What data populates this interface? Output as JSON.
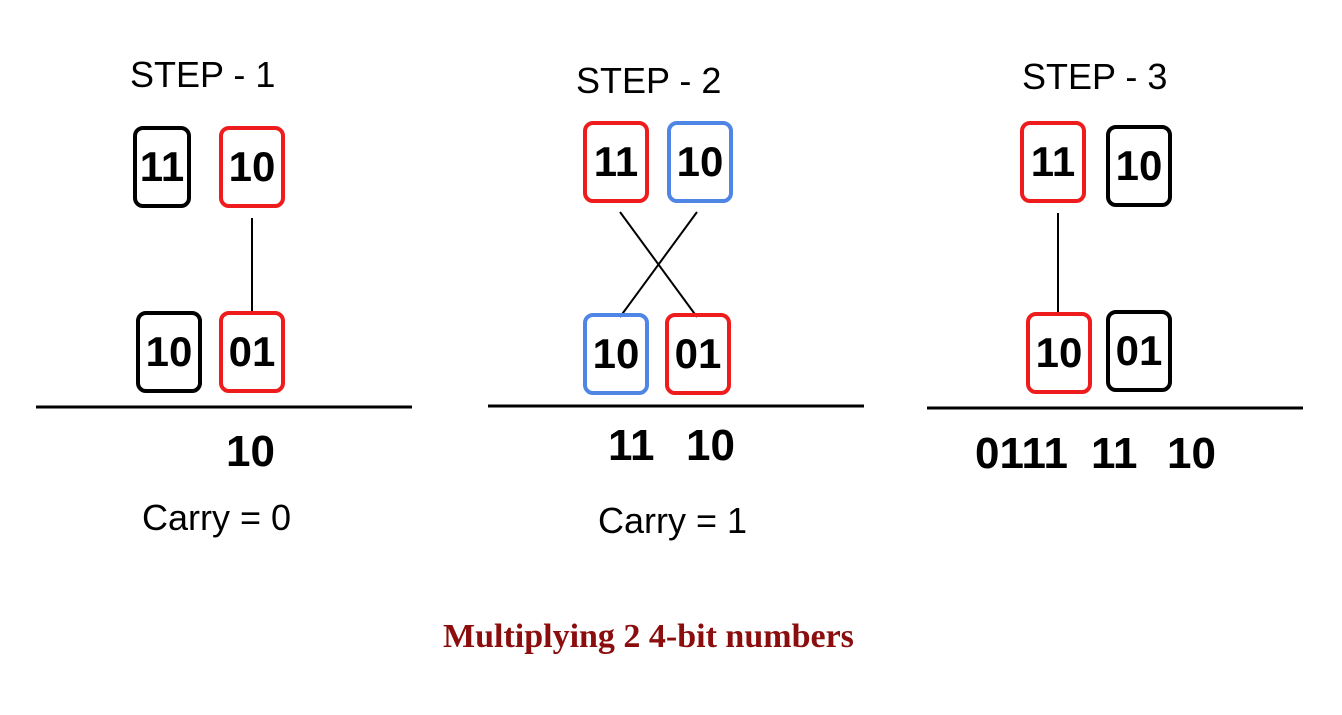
{
  "steps": [
    {
      "title": "STEP - 1",
      "top": [
        {
          "value": "11",
          "color": "black"
        },
        {
          "value": "10",
          "color": "red"
        }
      ],
      "bottom": [
        {
          "value": "10",
          "color": "black"
        },
        {
          "value": "01",
          "color": "red"
        }
      ],
      "result": "10",
      "carry": "Carry = 0"
    },
    {
      "title": "STEP - 2",
      "top": [
        {
          "value": "11",
          "color": "red"
        },
        {
          "value": "10",
          "color": "blue"
        }
      ],
      "bottom": [
        {
          "value": "10",
          "color": "blue"
        },
        {
          "value": "01",
          "color": "red"
        }
      ],
      "result_parts": [
        "11",
        "10"
      ],
      "carry": "Carry = 1"
    },
    {
      "title": "STEP - 3",
      "top": [
        {
          "value": "11",
          "color": "red"
        },
        {
          "value": "10",
          "color": "black"
        }
      ],
      "bottom": [
        {
          "value": "10",
          "color": "red"
        },
        {
          "value": "01",
          "color": "black"
        }
      ],
      "result_parts": [
        "0111",
        "11",
        "10"
      ]
    }
  ],
  "caption": "Multiplying 2 4-bit numbers",
  "colors": {
    "red": "#ee1c1c",
    "blue": "#4f86e6",
    "caption": "#8b0d0d"
  }
}
